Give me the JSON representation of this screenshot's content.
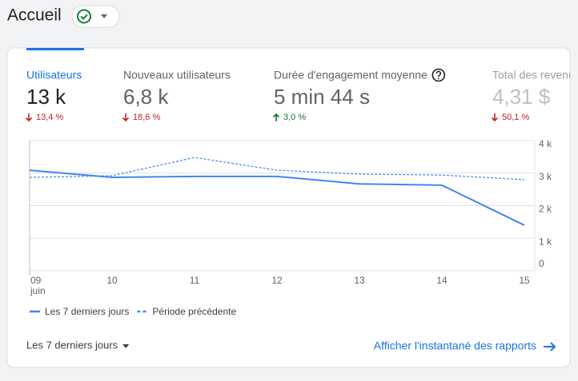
{
  "header": {
    "title": "Accueil"
  },
  "metrics": [
    {
      "label": "Utilisateurs",
      "value": "13 k",
      "change": "13,4 %",
      "change_color": "#c5221f",
      "label_color": "#1a73e8",
      "value_color": "#202124",
      "arrow": "down"
    },
    {
      "label": "Nouveaux utilisateurs",
      "value": "6,8 k",
      "change": "18,6 %",
      "change_color": "#c5221f",
      "label_color": "#5f6368",
      "value_color": "#5f6368",
      "arrow": "down"
    },
    {
      "label": "Durée d'engagement moyenne",
      "value": "5 min 44 s",
      "change": "3,0 %",
      "change_color": "#137333",
      "label_color": "#5f6368",
      "value_color": "#5f6368",
      "arrow": "up"
    },
    {
      "label": "Total des revenus",
      "value": "4,31 $",
      "change": "50,1 %",
      "change_color": "#c5221f",
      "label_color": "#9aa0a6",
      "value_color": "#bdc1c6",
      "arrow": "down"
    }
  ],
  "chart_data": {
    "type": "line",
    "categories": [
      "09",
      "10",
      "11",
      "12",
      "13",
      "14",
      "15"
    ],
    "month_label": "juin",
    "series": [
      {
        "name": "Les 7 derniers jours",
        "color": "#4285f4",
        "dashed": false,
        "values": [
          3.09,
          2.87,
          2.9,
          2.9,
          2.67,
          2.63,
          1.4
        ]
      },
      {
        "name": "Période précédente",
        "color": "#4285f4",
        "dashed": true,
        "values": [
          2.87,
          2.92,
          3.48,
          3.09,
          2.97,
          2.94,
          2.8
        ]
      }
    ],
    "ylim": [
      0,
      4
    ],
    "yticks": [
      0,
      {
        "value": 1,
        "label": "1 k"
      },
      {
        "value": 2,
        "label": "2 k"
      },
      {
        "value": 3,
        "label": "3 k"
      },
      {
        "value": 4,
        "label": "4 k"
      }
    ],
    "grid": true
  },
  "footer": {
    "period": "Les 7 derniers jours",
    "link": "Afficher l'instantané des rapports"
  }
}
